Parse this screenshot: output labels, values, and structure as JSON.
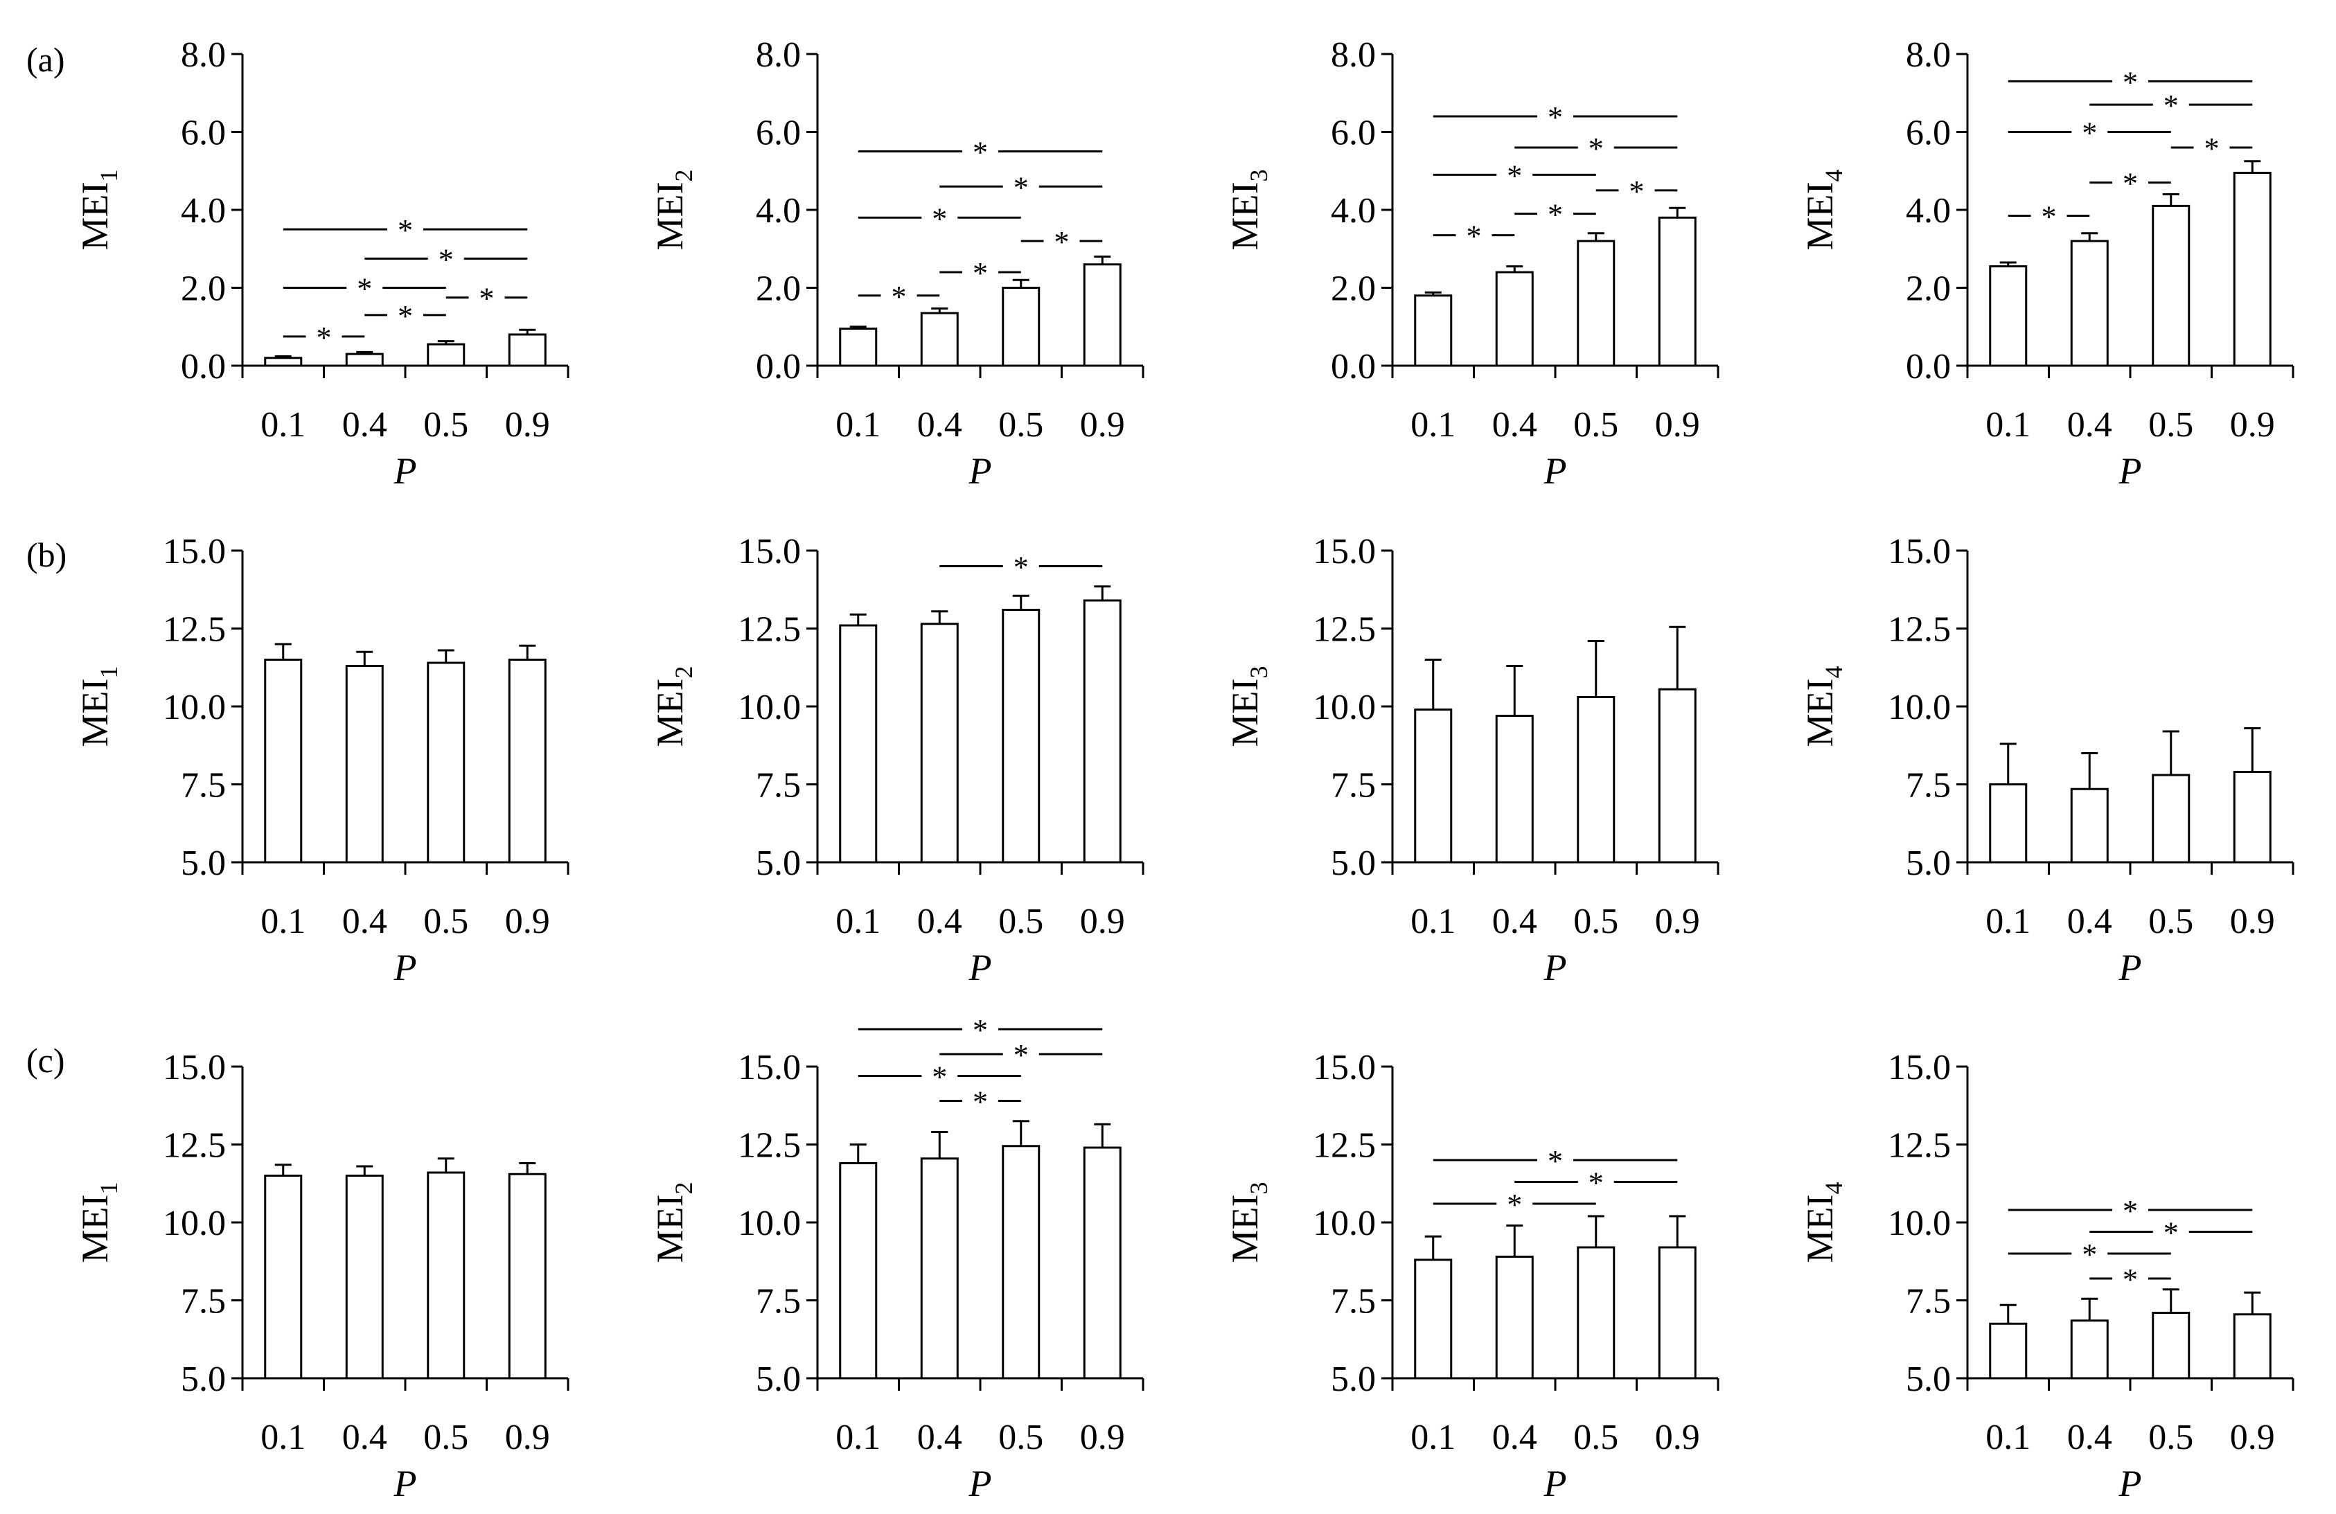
{
  "chart_data": [
    {
      "type": "bar",
      "row": "a",
      "panel_label": "(a)",
      "ylabel": "MEI",
      "ylabel_sub": "1",
      "xlabel": "P",
      "categories": [
        "0.1",
        "0.4",
        "0.5",
        "0.9"
      ],
      "values": [
        0.2,
        0.3,
        0.55,
        0.8
      ],
      "errors": [
        0.04,
        0.05,
        0.08,
        0.12
      ],
      "ylim": [
        0,
        8
      ],
      "yticks": [
        "0.0",
        "2.0",
        "4.0",
        "6.0",
        "8.0"
      ],
      "significance": [
        {
          "from": 0,
          "to": 1,
          "label": "*",
          "y": 0.75
        },
        {
          "from": 1,
          "to": 2,
          "label": "*",
          "y": 1.3
        },
        {
          "from": 2,
          "to": 3,
          "label": "*",
          "y": 1.75
        },
        {
          "from": 0,
          "to": 2,
          "label": "*",
          "y": 2.0
        },
        {
          "from": 1,
          "to": 3,
          "label": "*",
          "y": 2.75
        },
        {
          "from": 0,
          "to": 3,
          "label": "*",
          "y": 3.5
        }
      ]
    },
    {
      "type": "bar",
      "row": "a",
      "panel_label": "",
      "ylabel": "MEI",
      "ylabel_sub": "2",
      "xlabel": "P",
      "categories": [
        "0.1",
        "0.4",
        "0.5",
        "0.9"
      ],
      "values": [
        0.95,
        1.35,
        2.0,
        2.6
      ],
      "errors": [
        0.05,
        0.12,
        0.2,
        0.2
      ],
      "ylim": [
        0,
        8
      ],
      "yticks": [
        "0.0",
        "2.0",
        "4.0",
        "6.0",
        "8.0"
      ],
      "significance": [
        {
          "from": 0,
          "to": 1,
          "label": "*",
          "y": 1.8
        },
        {
          "from": 1,
          "to": 2,
          "label": "*",
          "y": 2.4
        },
        {
          "from": 2,
          "to": 3,
          "label": "*",
          "y": 3.2
        },
        {
          "from": 0,
          "to": 2,
          "label": "*",
          "y": 3.8
        },
        {
          "from": 1,
          "to": 3,
          "label": "*",
          "y": 4.6
        },
        {
          "from": 0,
          "to": 3,
          "label": "*",
          "y": 5.5
        }
      ]
    },
    {
      "type": "bar",
      "row": "a",
      "panel_label": "",
      "ylabel": "MEI",
      "ylabel_sub": "3",
      "xlabel": "P",
      "categories": [
        "0.1",
        "0.4",
        "0.5",
        "0.9"
      ],
      "values": [
        1.8,
        2.4,
        3.2,
        3.8
      ],
      "errors": [
        0.08,
        0.15,
        0.2,
        0.25
      ],
      "ylim": [
        0,
        8
      ],
      "yticks": [
        "0.0",
        "2.0",
        "4.0",
        "6.0",
        "8.0"
      ],
      "significance": [
        {
          "from": 0,
          "to": 1,
          "label": "*",
          "y": 3.35
        },
        {
          "from": 1,
          "to": 2,
          "label": "*",
          "y": 3.9
        },
        {
          "from": 2,
          "to": 3,
          "label": "*",
          "y": 4.5
        },
        {
          "from": 0,
          "to": 2,
          "label": "*",
          "y": 4.9
        },
        {
          "from": 1,
          "to": 3,
          "label": "*",
          "y": 5.6
        },
        {
          "from": 0,
          "to": 3,
          "label": "*",
          "y": 6.4
        }
      ]
    },
    {
      "type": "bar",
      "row": "a",
      "panel_label": "",
      "ylabel": "MEI",
      "ylabel_sub": "4",
      "xlabel": "P",
      "categories": [
        "0.1",
        "0.4",
        "0.5",
        "0.9"
      ],
      "values": [
        2.55,
        3.2,
        4.1,
        4.95
      ],
      "errors": [
        0.1,
        0.2,
        0.3,
        0.3
      ],
      "ylim": [
        0,
        8
      ],
      "yticks": [
        "0.0",
        "2.0",
        "4.0",
        "6.0",
        "8.0"
      ],
      "significance": [
        {
          "from": 0,
          "to": 1,
          "label": "*",
          "y": 3.85
        },
        {
          "from": 1,
          "to": 2,
          "label": "*",
          "y": 4.7
        },
        {
          "from": 2,
          "to": 3,
          "label": "*",
          "y": 5.6
        },
        {
          "from": 0,
          "to": 2,
          "label": "*",
          "y": 6.0
        },
        {
          "from": 1,
          "to": 3,
          "label": "*",
          "y": 6.7
        },
        {
          "from": 0,
          "to": 3,
          "label": "*",
          "y": 7.3
        }
      ]
    },
    {
      "type": "bar",
      "row": "b",
      "panel_label": "(b)",
      "ylabel": "MEI",
      "ylabel_sub": "1",
      "xlabel": "P",
      "categories": [
        "0.1",
        "0.4",
        "0.5",
        "0.9"
      ],
      "values": [
        11.5,
        11.3,
        11.4,
        11.5
      ],
      "errors": [
        0.5,
        0.45,
        0.4,
        0.45
      ],
      "ylim": [
        5,
        15
      ],
      "yticks": [
        "5.0",
        "7.5",
        "10.0",
        "12.5",
        "15.0"
      ],
      "significance": []
    },
    {
      "type": "bar",
      "row": "b",
      "panel_label": "",
      "ylabel": "MEI",
      "ylabel_sub": "2",
      "xlabel": "P",
      "categories": [
        "0.1",
        "0.4",
        "0.5",
        "0.9"
      ],
      "values": [
        12.6,
        12.65,
        13.1,
        13.4
      ],
      "errors": [
        0.35,
        0.4,
        0.45,
        0.45
      ],
      "ylim": [
        5,
        15
      ],
      "yticks": [
        "5.0",
        "7.5",
        "10.0",
        "12.5",
        "15.0"
      ],
      "significance": [
        {
          "from": 1,
          "to": 3,
          "label": "*",
          "y": 14.5
        }
      ]
    },
    {
      "type": "bar",
      "row": "b",
      "panel_label": "",
      "ylabel": "MEI",
      "ylabel_sub": "3",
      "xlabel": "P",
      "categories": [
        "0.1",
        "0.4",
        "0.5",
        "0.9"
      ],
      "values": [
        9.9,
        9.7,
        10.3,
        10.55
      ],
      "errors": [
        1.6,
        1.6,
        1.8,
        2.0
      ],
      "ylim": [
        5,
        15
      ],
      "yticks": [
        "5.0",
        "7.5",
        "10.0",
        "12.5",
        "15.0"
      ],
      "significance": []
    },
    {
      "type": "bar",
      "row": "b",
      "panel_label": "",
      "ylabel": "MEI",
      "ylabel_sub": "4",
      "xlabel": "P",
      "categories": [
        "0.1",
        "0.4",
        "0.5",
        "0.9"
      ],
      "values": [
        7.5,
        7.35,
        7.8,
        7.9
      ],
      "errors": [
        1.3,
        1.15,
        1.4,
        1.4
      ],
      "ylim": [
        5,
        15
      ],
      "yticks": [
        "5.0",
        "7.5",
        "10.0",
        "12.5",
        "15.0"
      ],
      "significance": []
    },
    {
      "type": "bar",
      "row": "c",
      "panel_label": "(c)",
      "ylabel": "MEI",
      "ylabel_sub": "1",
      "xlabel": "P",
      "categories": [
        "0.1",
        "0.4",
        "0.5",
        "0.9"
      ],
      "values": [
        11.5,
        11.5,
        11.6,
        11.55
      ],
      "errors": [
        0.35,
        0.3,
        0.45,
        0.35
      ],
      "ylim": [
        5,
        15
      ],
      "yticks": [
        "5.0",
        "7.5",
        "10.0",
        "12.5",
        "15.0"
      ],
      "significance": []
    },
    {
      "type": "bar",
      "row": "c",
      "panel_label": "",
      "ylabel": "MEI",
      "ylabel_sub": "2",
      "xlabel": "P",
      "categories": [
        "0.1",
        "0.4",
        "0.5",
        "0.9"
      ],
      "values": [
        11.9,
        12.05,
        12.45,
        12.4
      ],
      "errors": [
        0.6,
        0.85,
        0.8,
        0.75
      ],
      "ylim": [
        5,
        15
      ],
      "yticks": [
        "5.0",
        "7.5",
        "10.0",
        "12.5",
        "15.0"
      ],
      "significance": [
        {
          "from": 1,
          "to": 2,
          "label": "*",
          "y": 13.9
        },
        {
          "from": 0,
          "to": 2,
          "label": "*",
          "y": 14.7
        },
        {
          "from": 1,
          "to": 3,
          "label": "*",
          "y": 15.4
        },
        {
          "from": 0,
          "to": 3,
          "label": "*",
          "y": 16.2
        }
      ]
    },
    {
      "type": "bar",
      "row": "c",
      "panel_label": "",
      "ylabel": "MEI",
      "ylabel_sub": "3",
      "xlabel": "P",
      "categories": [
        "0.1",
        "0.4",
        "0.5",
        "0.9"
      ],
      "values": [
        8.8,
        8.9,
        9.2,
        9.2
      ],
      "errors": [
        0.75,
        1.0,
        1.0,
        1.0
      ],
      "ylim": [
        5,
        15
      ],
      "yticks": [
        "5.0",
        "7.5",
        "10.0",
        "12.5",
        "15.0"
      ],
      "significance": [
        {
          "from": 0,
          "to": 2,
          "label": "*",
          "y": 10.6
        },
        {
          "from": 1,
          "to": 3,
          "label": "*",
          "y": 11.3
        },
        {
          "from": 0,
          "to": 3,
          "label": "*",
          "y": 12.0
        }
      ]
    },
    {
      "type": "bar",
      "row": "c",
      "panel_label": "",
      "ylabel": "MEI",
      "ylabel_sub": "4",
      "xlabel": "P",
      "categories": [
        "0.1",
        "0.4",
        "0.5",
        "0.9"
      ],
      "values": [
        6.75,
        6.85,
        7.1,
        7.05
      ],
      "errors": [
        0.6,
        0.7,
        0.75,
        0.7
      ],
      "ylim": [
        5,
        15
      ],
      "yticks": [
        "5.0",
        "7.5",
        "10.0",
        "12.5",
        "15.0"
      ],
      "significance": [
        {
          "from": 1,
          "to": 2,
          "label": "*",
          "y": 8.2
        },
        {
          "from": 0,
          "to": 2,
          "label": "*",
          "y": 9.0
        },
        {
          "from": 1,
          "to": 3,
          "label": "*",
          "y": 9.7
        },
        {
          "from": 0,
          "to": 3,
          "label": "*",
          "y": 10.4
        }
      ]
    }
  ]
}
